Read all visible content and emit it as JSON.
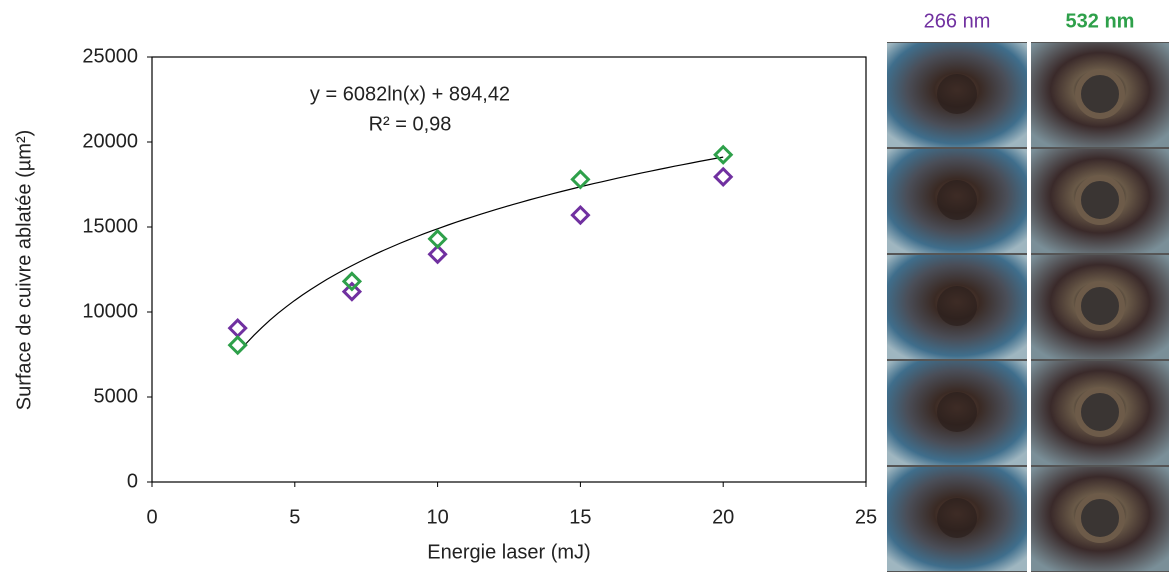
{
  "chart_data": {
    "type": "scatter",
    "x_label": "Energie laser (mJ)",
    "y_label": "Surface de cuivre ablatée (µm²)",
    "xlim": [
      0,
      25
    ],
    "xticks": [
      0,
      5,
      10,
      15,
      20,
      25
    ],
    "ylim": [
      0,
      25000
    ],
    "yticks": [
      0,
      5000,
      10000,
      15000,
      20000,
      25000
    ],
    "series": [
      {
        "name": "266 nm",
        "color": "#7030a0",
        "x": [
          3,
          7,
          10,
          15,
          20
        ],
        "values": [
          9050,
          11200,
          13400,
          15700,
          17950
        ]
      },
      {
        "name": "532 nm",
        "color": "#2ea04a",
        "x": [
          3,
          7,
          10,
          15,
          20
        ],
        "values": [
          8050,
          11800,
          14300,
          17800,
          19250
        ]
      }
    ],
    "trendline": {
      "equation": "y = 6082ln(x) + 894,42",
      "r2": "R² = 0,98",
      "coef": 6082,
      "intercept": 894.42,
      "x_range": [
        3,
        20
      ]
    }
  }
}
